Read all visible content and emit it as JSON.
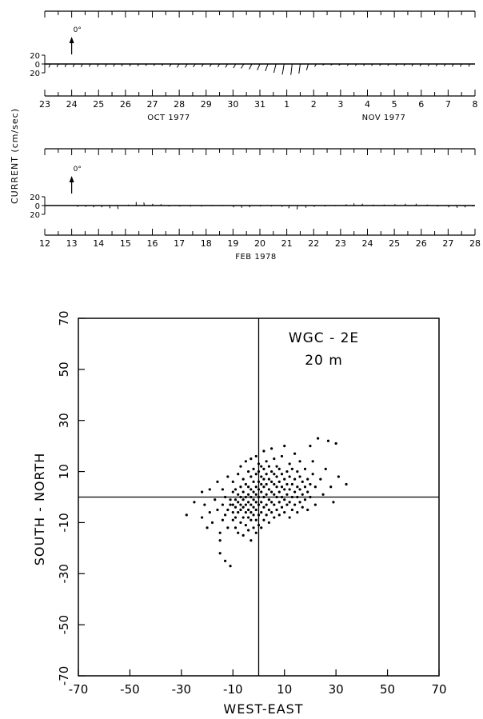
{
  "figure": {
    "shared_ylabel": "CURRENT (cm/sec)"
  },
  "chart_data": [
    {
      "type": "stick-plot",
      "direction_marker": "0°",
      "y_ticks": [
        "20",
        "0",
        "20"
      ],
      "x_ticks": [
        "23",
        "24",
        "25",
        "26",
        "27",
        "28",
        "29",
        "30",
        "31",
        "1",
        "2",
        "3",
        "4",
        "5",
        "6",
        "7",
        "8"
      ],
      "month_labels": [
        "OCT 1977",
        "NOV 1977"
      ],
      "sticks": [
        {
          "day": 23.2,
          "u": -3,
          "v": -8
        },
        {
          "day": 23.5,
          "u": -3,
          "v": -7
        },
        {
          "day": 23.8,
          "u": -3,
          "v": -7
        },
        {
          "day": 24.1,
          "u": -3,
          "v": -7
        },
        {
          "day": 24.4,
          "u": -3,
          "v": -7
        },
        {
          "day": 24.7,
          "u": -3,
          "v": -6
        },
        {
          "day": 25.0,
          "u": -3,
          "v": -6
        },
        {
          "day": 25.3,
          "u": -3,
          "v": -6
        },
        {
          "day": 25.6,
          "u": -3,
          "v": -6
        },
        {
          "day": 25.9,
          "u": -3,
          "v": -5
        },
        {
          "day": 26.2,
          "u": -3,
          "v": -5
        },
        {
          "day": 26.5,
          "u": -3,
          "v": -5
        },
        {
          "day": 26.8,
          "u": -3,
          "v": -4
        },
        {
          "day": 27.1,
          "u": -3,
          "v": -4
        },
        {
          "day": 27.4,
          "u": -3,
          "v": -4
        },
        {
          "day": 27.7,
          "u": -4,
          "v": -6
        },
        {
          "day": 28.0,
          "u": -5,
          "v": -8
        },
        {
          "day": 28.3,
          "u": -5,
          "v": -8
        },
        {
          "day": 28.6,
          "u": -5,
          "v": -7
        },
        {
          "day": 28.9,
          "u": -4,
          "v": -6
        },
        {
          "day": 29.2,
          "u": -4,
          "v": -6
        },
        {
          "day": 29.5,
          "u": -4,
          "v": -7
        },
        {
          "day": 29.8,
          "u": -5,
          "v": -8
        },
        {
          "day": 30.1,
          "u": -5,
          "v": -9
        },
        {
          "day": 30.4,
          "u": -6,
          "v": -10
        },
        {
          "day": 30.7,
          "u": -6,
          "v": -12
        },
        {
          "day": 31.0,
          "u": -6,
          "v": -14
        },
        {
          "day": 31.3,
          "u": -6,
          "v": -16
        },
        {
          "day": 31.6,
          "u": -5,
          "v": -20
        },
        {
          "day": 31.9,
          "u": -4,
          "v": -24
        },
        {
          "day": 32.2,
          "u": -3,
          "v": -25
        },
        {
          "day": 32.5,
          "u": -3,
          "v": -22
        },
        {
          "day": 32.8,
          "u": -4,
          "v": -14
        },
        {
          "day": 33.1,
          "u": -4,
          "v": -6
        },
        {
          "day": 33.4,
          "u": -4,
          "v": -3
        },
        {
          "day": 33.7,
          "u": -4,
          "v": -3
        },
        {
          "day": 34.0,
          "u": -4,
          "v": -3
        },
        {
          "day": 34.3,
          "u": -3,
          "v": -4
        },
        {
          "day": 34.6,
          "u": -3,
          "v": -4
        },
        {
          "day": 34.9,
          "u": -3,
          "v": -4
        },
        {
          "day": 35.2,
          "u": -3,
          "v": -4
        },
        {
          "day": 35.5,
          "u": -3,
          "v": -4
        },
        {
          "day": 35.8,
          "u": -3,
          "v": -4
        },
        {
          "day": 36.1,
          "u": -3,
          "v": -4
        },
        {
          "day": 36.4,
          "u": -3,
          "v": -4
        },
        {
          "day": 36.7,
          "u": -3,
          "v": -5
        },
        {
          "day": 37.0,
          "u": -3,
          "v": -5
        },
        {
          "day": 37.3,
          "u": -3,
          "v": -5
        },
        {
          "day": 37.6,
          "u": -3,
          "v": -5
        },
        {
          "day": 37.9,
          "u": -3,
          "v": -5
        },
        {
          "day": 38.2,
          "u": -3,
          "v": -6
        },
        {
          "day": 38.5,
          "u": -3,
          "v": -6
        },
        {
          "day": 38.8,
          "u": -2,
          "v": -6
        }
      ]
    },
    {
      "type": "stick-plot",
      "direction_marker": "0°",
      "y_ticks": [
        "20",
        "0",
        "20"
      ],
      "x_ticks": [
        "12",
        "13",
        "14",
        "15",
        "16",
        "17",
        "18",
        "19",
        "20",
        "21",
        "22",
        "23",
        "24",
        "25",
        "26",
        "27",
        "28"
      ],
      "month_labels": [
        "FEB 1978"
      ],
      "sticks": [
        {
          "day": 13.2,
          "u": 2,
          "v": -3
        },
        {
          "day": 13.5,
          "u": 2,
          "v": -3
        },
        {
          "day": 13.8,
          "u": 2,
          "v": -4
        },
        {
          "day": 14.1,
          "u": 2,
          "v": -4
        },
        {
          "day": 14.4,
          "u": 2,
          "v": -6
        },
        {
          "day": 14.7,
          "u": 2,
          "v": -8
        },
        {
          "day": 15.1,
          "u": 1,
          "v": 2
        },
        {
          "day": 15.4,
          "u": 0,
          "v": 8
        },
        {
          "day": 15.7,
          "u": -1,
          "v": 7
        },
        {
          "day": 16.0,
          "u": 1,
          "v": 4
        },
        {
          "day": 16.3,
          "u": 2,
          "v": 3
        },
        {
          "day": 16.6,
          "u": 2,
          "v": -2
        },
        {
          "day": 17.0,
          "u": 2,
          "v": -2
        },
        {
          "day": 17.4,
          "u": 2,
          "v": -2
        },
        {
          "day": 17.8,
          "u": 2,
          "v": -2
        },
        {
          "day": 18.2,
          "u": 2,
          "v": -1
        },
        {
          "day": 18.6,
          "u": 2,
          "v": -1
        },
        {
          "day": 19.0,
          "u": 2,
          "v": -4
        },
        {
          "day": 19.3,
          "u": 2,
          "v": -5
        },
        {
          "day": 19.6,
          "u": 2,
          "v": -4
        },
        {
          "day": 20.0,
          "u": 2,
          "v": -2
        },
        {
          "day": 20.4,
          "u": 2,
          "v": -2
        },
        {
          "day": 20.8,
          "u": 2,
          "v": -3
        },
        {
          "day": 21.1,
          "u": -2,
          "v": -6
        },
        {
          "day": 21.4,
          "u": -1,
          "v": -9
        },
        {
          "day": 21.7,
          "u": 1,
          "v": -5
        },
        {
          "day": 22.0,
          "u": 2,
          "v": -3
        },
        {
          "day": 22.4,
          "u": 2,
          "v": -2
        },
        {
          "day": 22.8,
          "u": 2,
          "v": -1
        },
        {
          "day": 23.2,
          "u": 1,
          "v": 3
        },
        {
          "day": 23.5,
          "u": 0,
          "v": 5
        },
        {
          "day": 23.8,
          "u": 1,
          "v": 4
        },
        {
          "day": 24.2,
          "u": 2,
          "v": 2
        },
        {
          "day": 24.6,
          "u": 2,
          "v": 2
        },
        {
          "day": 25.0,
          "u": 2,
          "v": 3
        },
        {
          "day": 25.4,
          "u": 1,
          "v": 4
        },
        {
          "day": 25.8,
          "u": 1,
          "v": 4
        },
        {
          "day": 26.2,
          "u": 2,
          "v": 2
        },
        {
          "day": 26.6,
          "u": 2,
          "v": -2
        },
        {
          "day": 27.0,
          "u": 2,
          "v": -4
        },
        {
          "day": 27.3,
          "u": 3,
          "v": -5
        },
        {
          "day": 27.6,
          "u": 3,
          "v": -4
        },
        {
          "day": 27.9,
          "u": 2,
          "v": -2
        }
      ]
    },
    {
      "type": "scatter",
      "title": "WGC - 2E",
      "subtitle": "20 m",
      "xlabel": "WEST-EAST",
      "ylabel": "SOUTH - NORTH",
      "xlim": [
        -70,
        70
      ],
      "ylim": [
        -70,
        70
      ],
      "xticks": [
        "-70",
        "-50",
        "-30",
        "-10",
        "10",
        "30",
        "50",
        "70"
      ],
      "yticks": [
        "70",
        "50",
        "30",
        "10",
        "-10",
        "-30",
        "-50",
        "-70"
      ],
      "points": [
        [
          -28,
          -7
        ],
        [
          -25,
          -2
        ],
        [
          -22,
          -8
        ],
        [
          -22,
          2
        ],
        [
          -21,
          -3
        ],
        [
          -20,
          -12
        ],
        [
          -19,
          -6
        ],
        [
          -19,
          3
        ],
        [
          -18,
          -10
        ],
        [
          -17,
          -1
        ],
        [
          -16,
          -5
        ],
        [
          -16,
          6
        ],
        [
          -15,
          -17
        ],
        [
          -15,
          -22
        ],
        [
          -15,
          -14
        ],
        [
          -14,
          -9
        ],
        [
          -14,
          -3
        ],
        [
          -14,
          3
        ],
        [
          -13,
          -25
        ],
        [
          -13,
          -7
        ],
        [
          -13,
          0
        ],
        [
          -12,
          -12
        ],
        [
          -12,
          -5
        ],
        [
          -12,
          8
        ],
        [
          -11,
          -27
        ],
        [
          -11,
          -3
        ],
        [
          -11,
          -1
        ],
        [
          -10,
          -9
        ],
        [
          -10,
          -6
        ],
        [
          -10,
          -3
        ],
        [
          -10,
          2
        ],
        [
          -10,
          6
        ],
        [
          -9,
          -12
        ],
        [
          -9,
          -8
        ],
        [
          -9,
          -4
        ],
        [
          -9,
          -1
        ],
        [
          -9,
          3
        ],
        [
          -8,
          -14
        ],
        [
          -8,
          -6
        ],
        [
          -8,
          -2
        ],
        [
          -8,
          1
        ],
        [
          -8,
          9
        ],
        [
          -7,
          -10
        ],
        [
          -7,
          -5
        ],
        [
          -7,
          -3
        ],
        [
          -7,
          0
        ],
        [
          -7,
          4
        ],
        [
          -7,
          12
        ],
        [
          -6,
          -15
        ],
        [
          -6,
          -8
        ],
        [
          -6,
          -4
        ],
        [
          -6,
          -1
        ],
        [
          -6,
          2
        ],
        [
          -6,
          7
        ],
        [
          -5,
          -11
        ],
        [
          -5,
          -6
        ],
        [
          -5,
          -3
        ],
        [
          -5,
          0
        ],
        [
          -5,
          5
        ],
        [
          -5,
          14
        ],
        [
          -4,
          -13
        ],
        [
          -4,
          -8
        ],
        [
          -4,
          -5
        ],
        [
          -4,
          -2
        ],
        [
          -4,
          1
        ],
        [
          -4,
          4
        ],
        [
          -4,
          10
        ],
        [
          -3,
          -17
        ],
        [
          -3,
          -9
        ],
        [
          -3,
          -6
        ],
        [
          -3,
          -3
        ],
        [
          -3,
          0
        ],
        [
          -3,
          3
        ],
        [
          -3,
          8
        ],
        [
          -3,
          15
        ],
        [
          -2,
          -12
        ],
        [
          -2,
          -7
        ],
        [
          -2,
          -4
        ],
        [
          -2,
          -1
        ],
        [
          -2,
          2
        ],
        [
          -2,
          6
        ],
        [
          -2,
          11
        ],
        [
          -1,
          -14
        ],
        [
          -1,
          -9
        ],
        [
          -1,
          -5
        ],
        [
          -1,
          -2
        ],
        [
          -1,
          1
        ],
        [
          -1,
          4
        ],
        [
          -1,
          9
        ],
        [
          -1,
          16
        ],
        [
          0,
          -11
        ],
        [
          0,
          -7
        ],
        [
          0,
          -3
        ],
        [
          0,
          0
        ],
        [
          0,
          3
        ],
        [
          0,
          6
        ],
        [
          0,
          10
        ],
        [
          0,
          13
        ],
        [
          1,
          -12
        ],
        [
          1,
          -6
        ],
        [
          1,
          -2
        ],
        [
          1,
          2
        ],
        [
          1,
          5
        ],
        [
          1,
          8
        ],
        [
          1,
          12
        ],
        [
          2,
          -9
        ],
        [
          2,
          -4
        ],
        [
          2,
          0
        ],
        [
          2,
          4
        ],
        [
          2,
          7
        ],
        [
          2,
          11
        ],
        [
          2,
          18
        ],
        [
          3,
          -7
        ],
        [
          3,
          -3
        ],
        [
          3,
          1
        ],
        [
          3,
          5
        ],
        [
          3,
          9
        ],
        [
          3,
          14
        ],
        [
          4,
          -10
        ],
        [
          4,
          -5
        ],
        [
          4,
          -1
        ],
        [
          4,
          3
        ],
        [
          4,
          7
        ],
        [
          4,
          12
        ],
        [
          5,
          -6
        ],
        [
          5,
          -2
        ],
        [
          5,
          2
        ],
        [
          5,
          6
        ],
        [
          5,
          10
        ],
        [
          5,
          19
        ],
        [
          6,
          -8
        ],
        [
          6,
          -3
        ],
        [
          6,
          1
        ],
        [
          6,
          5
        ],
        [
          6,
          9
        ],
        [
          6,
          15
        ],
        [
          7,
          -5
        ],
        [
          7,
          0
        ],
        [
          7,
          4
        ],
        [
          7,
          8
        ],
        [
          7,
          12
        ],
        [
          8,
          -7
        ],
        [
          8,
          -2
        ],
        [
          8,
          2
        ],
        [
          8,
          6
        ],
        [
          8,
          11
        ],
        [
          9,
          -4
        ],
        [
          9,
          0
        ],
        [
          9,
          4
        ],
        [
          9,
          9
        ],
        [
          9,
          16
        ],
        [
          10,
          -6
        ],
        [
          10,
          -1
        ],
        [
          10,
          3
        ],
        [
          10,
          7
        ],
        [
          10,
          20
        ],
        [
          11,
          -3
        ],
        [
          11,
          1
        ],
        [
          11,
          5
        ],
        [
          11,
          10
        ],
        [
          12,
          -8
        ],
        [
          12,
          -2
        ],
        [
          12,
          3
        ],
        [
          12,
          8
        ],
        [
          12,
          13
        ],
        [
          13,
          -5
        ],
        [
          13,
          0
        ],
        [
          13,
          5
        ],
        [
          13,
          11
        ],
        [
          14,
          -3
        ],
        [
          14,
          2
        ],
        [
          14,
          7
        ],
        [
          14,
          17
        ],
        [
          15,
          -6
        ],
        [
          15,
          0
        ],
        [
          15,
          4
        ],
        [
          15,
          10
        ],
        [
          16,
          -2
        ],
        [
          16,
          3
        ],
        [
          16,
          8
        ],
        [
          16,
          14
        ],
        [
          17,
          -4
        ],
        [
          17,
          1
        ],
        [
          17,
          6
        ],
        [
          18,
          -1
        ],
        [
          18,
          4
        ],
        [
          18,
          11
        ],
        [
          19,
          -5
        ],
        [
          19,
          2
        ],
        [
          19,
          7
        ],
        [
          20,
          0
        ],
        [
          20,
          5
        ],
        [
          20,
          20
        ],
        [
          21,
          9
        ],
        [
          21,
          14
        ],
        [
          22,
          -3
        ],
        [
          22,
          4
        ],
        [
          23,
          23
        ],
        [
          24,
          7
        ],
        [
          25,
          1
        ],
        [
          26,
          11
        ],
        [
          27,
          22
        ],
        [
          28,
          4
        ],
        [
          29,
          -2
        ],
        [
          30,
          21
        ],
        [
          31,
          8
        ],
        [
          34,
          5
        ]
      ]
    }
  ]
}
